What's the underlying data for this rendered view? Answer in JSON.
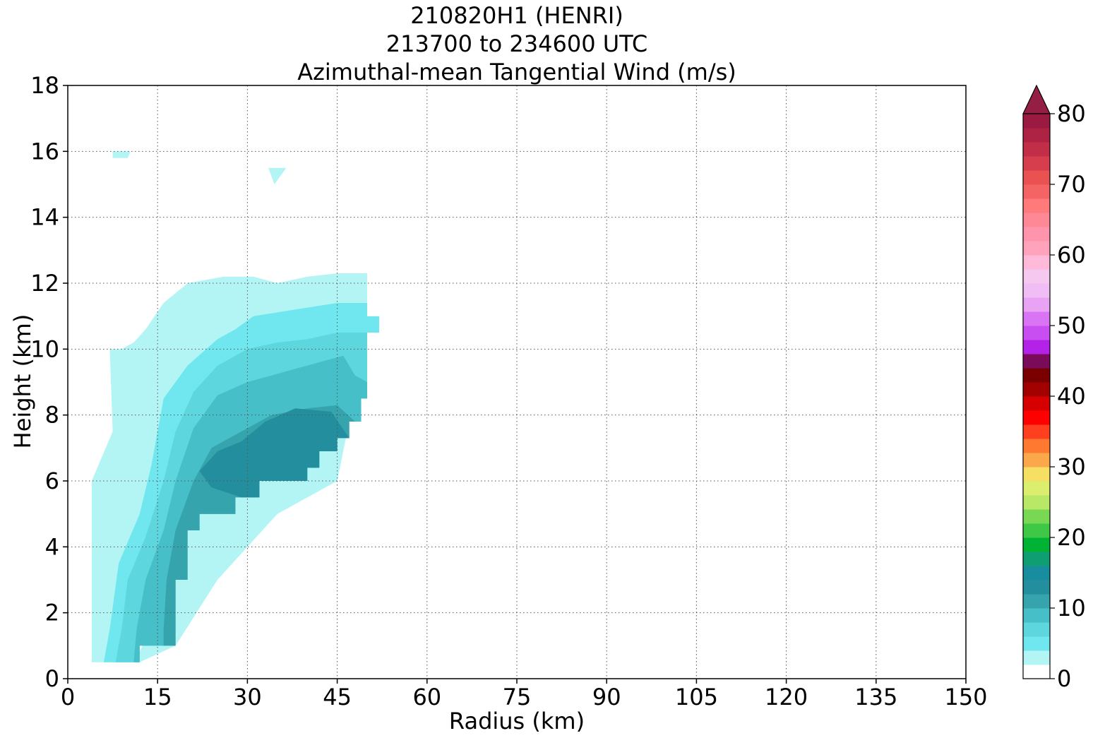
{
  "chart_data": {
    "type": "filled-contour",
    "title_lines": [
      "210820H1 (HENRI)",
      "213700 to 234600 UTC",
      "Azimuthal-mean Tangential Wind (m/s)"
    ],
    "xlabel": "Radius (km)",
    "ylabel": "Height (km)",
    "xlim": [
      0,
      150
    ],
    "ylim": [
      0,
      18
    ],
    "xticks": [
      0,
      15,
      30,
      45,
      60,
      75,
      90,
      105,
      120,
      135,
      150
    ],
    "yticks": [
      0,
      2,
      4,
      6,
      8,
      10,
      12,
      14,
      16,
      18
    ],
    "grid": true,
    "colorbar": {
      "min": 0,
      "max": 80,
      "step": 2,
      "extend": "max",
      "ticks": [
        0,
        10,
        20,
        30,
        40,
        50,
        60,
        70,
        80
      ],
      "colors": [
        "#ffffff",
        "#b3f5f5",
        "#70e6ee",
        "#5dd6de",
        "#46bfc9",
        "#36a4ad",
        "#238f9e",
        "#178d9f",
        "#0f9e72",
        "#00b335",
        "#3ec845",
        "#78d854",
        "#b8e866",
        "#dcee6e",
        "#f5e064",
        "#fba84a",
        "#ff7a30",
        "#ff4020",
        "#ff0000",
        "#d60000",
        "#a30000",
        "#7a0000",
        "#7a0a5a",
        "#b322e6",
        "#c84ef2",
        "#d974f5",
        "#e9a3f5",
        "#f0bef5",
        "#f5c8ef",
        "#ffb9d9",
        "#ffa3bd",
        "#ff94ad",
        "#ff8896",
        "#ff7a7a",
        "#f56464",
        "#ea5252",
        "#d63e4e",
        "#c22e48",
        "#ae2244",
        "#9a1a42"
      ],
      "extend_color": "#941e44"
    },
    "contours": [
      {
        "level": 2,
        "color": "#b3f5f5",
        "points": [
          [
            4,
            0.5
          ],
          [
            11,
            0.5
          ],
          [
            12.5,
            1
          ],
          [
            13,
            2
          ],
          [
            13.5,
            4
          ],
          [
            15,
            6
          ],
          [
            17,
            8
          ],
          [
            21,
            10
          ],
          [
            30,
            11.5
          ],
          [
            38,
            12
          ],
          [
            45,
            12.1
          ],
          [
            50,
            12.1
          ],
          [
            50,
            10.5
          ],
          [
            45,
            6
          ],
          [
            35,
            5
          ],
          [
            25,
            3
          ],
          [
            18,
            1
          ],
          [
            12,
            0.5
          ],
          [
            4,
            0.5
          ],
          [
            4,
            0.5
          ],
          [
            4,
            6
          ],
          [
            7.5,
            7.5
          ],
          [
            7.2,
            9
          ],
          [
            7,
            10
          ],
          [
            9,
            10
          ],
          [
            11,
            10.2
          ],
          [
            13,
            10.6
          ],
          [
            16,
            11.4
          ],
          [
            20,
            12
          ],
          [
            26,
            12.2
          ],
          [
            31,
            12.2
          ],
          [
            35,
            12
          ],
          [
            40,
            12.2
          ],
          [
            45,
            12.3
          ],
          [
            50,
            12.3
          ],
          [
            50,
            10.5
          ],
          [
            50,
            8.5
          ],
          [
            49,
            8.5
          ],
          [
            49,
            7.8
          ],
          [
            47,
            7.8
          ],
          [
            47,
            7.3
          ],
          [
            45,
            7.3
          ],
          [
            45,
            6.9
          ],
          [
            42,
            6.9
          ],
          [
            42,
            6.4
          ],
          [
            40,
            6.4
          ],
          [
            40,
            6
          ],
          [
            32,
            6
          ],
          [
            32,
            5.5
          ],
          [
            28,
            5.5
          ],
          [
            28,
            5
          ],
          [
            22,
            5
          ],
          [
            22,
            4.5
          ],
          [
            20,
            4.5
          ],
          [
            20,
            3
          ],
          [
            18,
            3
          ],
          [
            18,
            1
          ],
          [
            12,
            1
          ],
          [
            12,
            0.5
          ],
          [
            4,
            0.5
          ]
        ]
      },
      {
        "level": 4,
        "color": "#70e6ee",
        "points": [
          [
            6,
            0.5
          ],
          [
            12,
            0.5
          ],
          [
            12,
            1
          ],
          [
            18,
            1
          ],
          [
            18,
            3
          ],
          [
            20,
            3
          ],
          [
            20,
            4.5
          ],
          [
            22,
            4.5
          ],
          [
            22,
            5
          ],
          [
            28,
            5
          ],
          [
            28,
            5.5
          ],
          [
            32,
            5.5
          ],
          [
            32,
            6
          ],
          [
            40,
            6
          ],
          [
            40,
            6.4
          ],
          [
            42,
            6.4
          ],
          [
            42,
            6.9
          ],
          [
            45,
            6.9
          ],
          [
            45,
            7.3
          ],
          [
            47,
            7.3
          ],
          [
            47,
            7.8
          ],
          [
            49,
            7.8
          ],
          [
            49,
            8.5
          ],
          [
            50,
            8.5
          ],
          [
            50,
            10.5
          ],
          [
            52,
            10.5
          ],
          [
            52,
            11
          ],
          [
            50,
            11
          ],
          [
            50,
            11.4
          ],
          [
            45,
            11.4
          ],
          [
            38,
            11.2
          ],
          [
            31,
            11
          ],
          [
            28,
            10.6
          ],
          [
            25,
            10.3
          ],
          [
            20,
            9.5
          ],
          [
            16,
            8.5
          ],
          [
            14,
            6.5
          ],
          [
            12,
            5
          ],
          [
            8.5,
            3.5
          ],
          [
            7,
            1.5
          ],
          [
            6,
            0.5
          ]
        ]
      },
      {
        "level": 6,
        "color": "#5dd6de",
        "points": [
          [
            8,
            0.5
          ],
          [
            12,
            0.5
          ],
          [
            12,
            1
          ],
          [
            18,
            1
          ],
          [
            18,
            3
          ],
          [
            20,
            3
          ],
          [
            20,
            4.5
          ],
          [
            22,
            4.5
          ],
          [
            22,
            5
          ],
          [
            28,
            5
          ],
          [
            28,
            5.5
          ],
          [
            32,
            5.5
          ],
          [
            32,
            6
          ],
          [
            40,
            6
          ],
          [
            40,
            6.4
          ],
          [
            42,
            6.4
          ],
          [
            42,
            6.9
          ],
          [
            45,
            6.9
          ],
          [
            45,
            7.3
          ],
          [
            47,
            7.3
          ],
          [
            47,
            7.8
          ],
          [
            49,
            7.8
          ],
          [
            49,
            8.5
          ],
          [
            50,
            8.5
          ],
          [
            50,
            10.5
          ],
          [
            45,
            10.5
          ],
          [
            40,
            10.3
          ],
          [
            35,
            10.2
          ],
          [
            30,
            10
          ],
          [
            25,
            9.5
          ],
          [
            21,
            8.7
          ],
          [
            18,
            7.5
          ],
          [
            16,
            6
          ],
          [
            13,
            4.3
          ],
          [
            10,
            3
          ],
          [
            9,
            1.5
          ],
          [
            8,
            0.5
          ]
        ]
      },
      {
        "level": 8,
        "color": "#46bfc9",
        "points": [
          [
            11,
            0.5
          ],
          [
            12,
            0.5
          ],
          [
            12,
            1
          ],
          [
            18,
            1
          ],
          [
            18,
            3
          ],
          [
            20,
            3
          ],
          [
            20,
            4.5
          ],
          [
            22,
            4.5
          ],
          [
            22,
            5
          ],
          [
            28,
            5
          ],
          [
            28,
            5.5
          ],
          [
            32,
            5.5
          ],
          [
            32,
            6
          ],
          [
            40,
            6
          ],
          [
            40,
            6.4
          ],
          [
            42,
            6.4
          ],
          [
            42,
            6.9
          ],
          [
            45,
            6.9
          ],
          [
            45,
            7.3
          ],
          [
            47,
            7.3
          ],
          [
            47,
            7.8
          ],
          [
            49,
            7.8
          ],
          [
            49,
            8.5
          ],
          [
            50,
            8.5
          ],
          [
            50,
            9
          ],
          [
            48,
            9.2
          ],
          [
            46,
            9.8
          ],
          [
            42,
            9.6
          ],
          [
            38,
            9.4
          ],
          [
            34,
            9.2
          ],
          [
            30,
            9
          ],
          [
            25,
            8.6
          ],
          [
            21,
            7.6
          ],
          [
            18,
            6
          ],
          [
            16,
            4.5
          ],
          [
            13,
            3
          ],
          [
            11.5,
            1.5
          ],
          [
            11,
            0.5
          ]
        ]
      },
      {
        "level": 10,
        "color": "#36a4ad",
        "points": [
          [
            16,
            1
          ],
          [
            18,
            1
          ],
          [
            18,
            3
          ],
          [
            20,
            3
          ],
          [
            20,
            4.5
          ],
          [
            22,
            4.5
          ],
          [
            22,
            5
          ],
          [
            28,
            5
          ],
          [
            28,
            5.5
          ],
          [
            32,
            5.5
          ],
          [
            32,
            6
          ],
          [
            40,
            6
          ],
          [
            40,
            6.4
          ],
          [
            42,
            6.4
          ],
          [
            42,
            6.9
          ],
          [
            45,
            6.9
          ],
          [
            45,
            7.3
          ],
          [
            47,
            7.3
          ],
          [
            47,
            7.8
          ],
          [
            48,
            7.8
          ],
          [
            45,
            8.3
          ],
          [
            40,
            8.2
          ],
          [
            34,
            8
          ],
          [
            29,
            7.5
          ],
          [
            24,
            7
          ],
          [
            21,
            6
          ],
          [
            18,
            4.5
          ],
          [
            16.5,
            3
          ],
          [
            16,
            1.5
          ],
          [
            16,
            1
          ]
        ]
      },
      {
        "level": 12,
        "color": "#238f9e",
        "points": [
          [
            29,
            5.5
          ],
          [
            32,
            5.5
          ],
          [
            32,
            6
          ],
          [
            40,
            6
          ],
          [
            40,
            6.4
          ],
          [
            42,
            6.4
          ],
          [
            42,
            6.9
          ],
          [
            45,
            6.9
          ],
          [
            45,
            7.3
          ],
          [
            47,
            7.3
          ],
          [
            44,
            8.1
          ],
          [
            38,
            8.2
          ],
          [
            33,
            7.8
          ],
          [
            29,
            7.2
          ],
          [
            25,
            6.9
          ],
          [
            22,
            6.3
          ],
          [
            24,
            5.8
          ],
          [
            29,
            5.5
          ]
        ]
      },
      {
        "level": 2,
        "color": "#b3f5f5",
        "points": [
          [
            7.5,
            15.8
          ],
          [
            10,
            15.8
          ],
          [
            10.5,
            16
          ],
          [
            7.5,
            16
          ]
        ]
      },
      {
        "level": 2,
        "color": "#b3f5f5",
        "points": [
          [
            33.5,
            15.5
          ],
          [
            36.5,
            15.5
          ],
          [
            34.5,
            15
          ],
          [
            33.5,
            15.5
          ]
        ]
      }
    ]
  }
}
